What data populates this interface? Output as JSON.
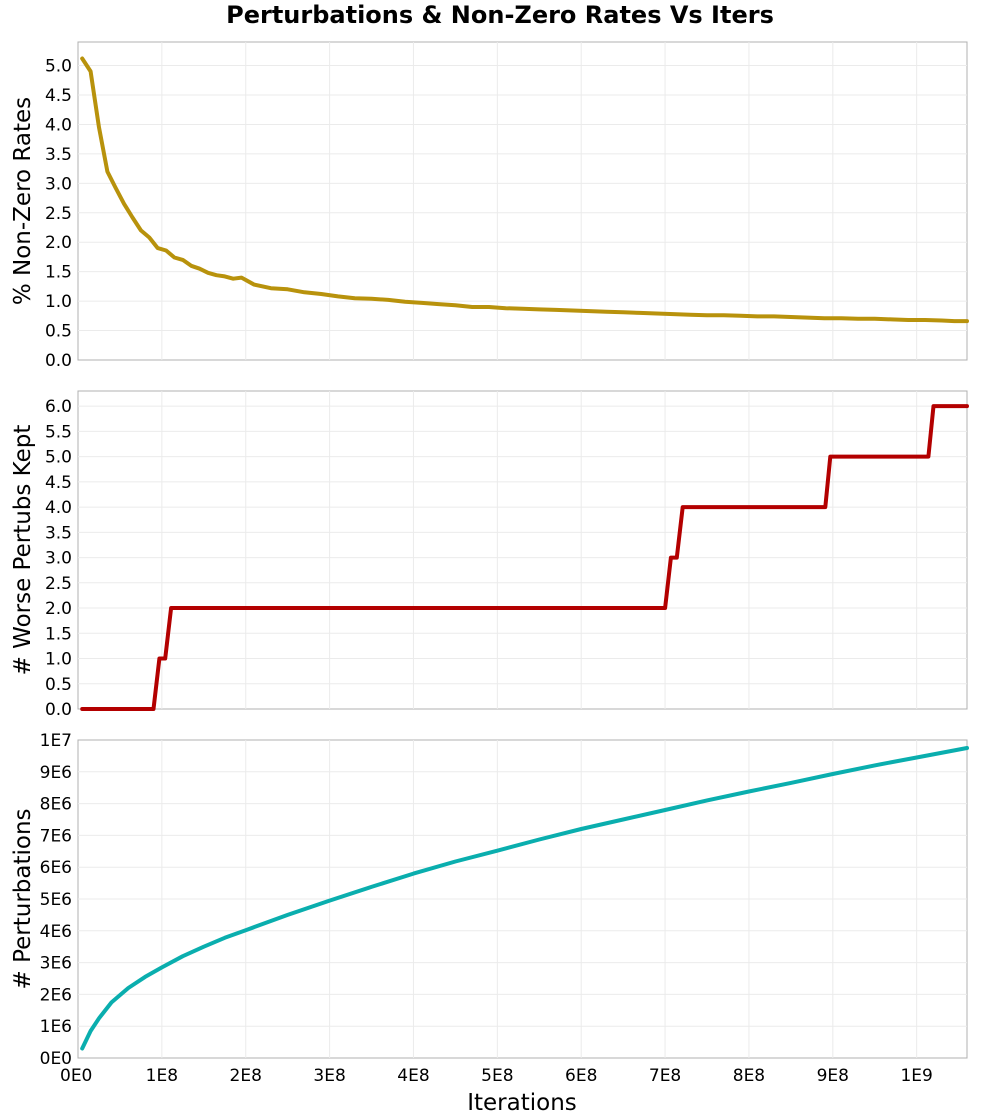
{
  "chart_data": {
    "title": "Perturbations & Non-Zero Rates Vs Iters",
    "xlabel": "Iterations",
    "x_ticks": [
      {
        "value": 0,
        "label": "0E0"
      },
      {
        "value": 100000000,
        "label": "1E8"
      },
      {
        "value": 200000000,
        "label": "2E8"
      },
      {
        "value": 300000000,
        "label": "3E8"
      },
      {
        "value": 400000000,
        "label": "4E8"
      },
      {
        "value": 500000000,
        "label": "5E8"
      },
      {
        "value": 600000000,
        "label": "6E8"
      },
      {
        "value": 700000000,
        "label": "7E8"
      },
      {
        "value": 800000000,
        "label": "8E8"
      },
      {
        "value": 900000000,
        "label": "9E8"
      },
      {
        "value": 1000000000,
        "label": "1E9"
      }
    ],
    "xlim": [
      0,
      1060000000
    ],
    "grid": true,
    "panels": [
      {
        "type": "line",
        "ylabel": "% Non-Zero Rates",
        "ylim": [
          0,
          5.4
        ],
        "y_ticks": [
          {
            "value": 0,
            "label": "0.0"
          },
          {
            "value": 0.5,
            "label": "0.5"
          },
          {
            "value": 1,
            "label": "1.0"
          },
          {
            "value": 1.5,
            "label": "1.5"
          },
          {
            "value": 2,
            "label": "2.0"
          },
          {
            "value": 2.5,
            "label": "2.5"
          },
          {
            "value": 3,
            "label": "3.0"
          },
          {
            "value": 3.5,
            "label": "3.5"
          },
          {
            "value": 4,
            "label": "4.0"
          },
          {
            "value": 4.5,
            "label": "4.5"
          },
          {
            "value": 5,
            "label": "5.0"
          }
        ],
        "color": "#b8920c",
        "x": [
          5000000,
          15000000,
          25000000,
          35000000,
          45000000,
          55000000,
          65000000,
          75000000,
          85000000,
          95000000,
          105000000,
          115000000,
          125000000,
          135000000,
          145000000,
          155000000,
          165000000,
          175000000,
          185000000,
          195000000,
          210000000,
          230000000,
          250000000,
          270000000,
          290000000,
          310000000,
          330000000,
          350000000,
          370000000,
          390000000,
          410000000,
          430000000,
          450000000,
          470000000,
          490000000,
          510000000,
          530000000,
          550000000,
          570000000,
          590000000,
          610000000,
          630000000,
          650000000,
          670000000,
          690000000,
          710000000,
          730000000,
          750000000,
          770000000,
          790000000,
          810000000,
          830000000,
          850000000,
          870000000,
          890000000,
          910000000,
          930000000,
          950000000,
          970000000,
          990000000,
          1010000000,
          1030000000,
          1045000000,
          1060000000
        ],
        "y": [
          5.12,
          4.9,
          3.95,
          3.2,
          2.92,
          2.65,
          2.42,
          2.2,
          2.08,
          1.9,
          1.86,
          1.74,
          1.7,
          1.6,
          1.55,
          1.48,
          1.44,
          1.42,
          1.38,
          1.4,
          1.28,
          1.22,
          1.2,
          1.15,
          1.12,
          1.08,
          1.05,
          1.04,
          1.02,
          0.99,
          0.97,
          0.95,
          0.93,
          0.9,
          0.9,
          0.88,
          0.87,
          0.86,
          0.85,
          0.84,
          0.83,
          0.82,
          0.81,
          0.8,
          0.79,
          0.78,
          0.77,
          0.76,
          0.76,
          0.75,
          0.74,
          0.74,
          0.73,
          0.72,
          0.71,
          0.71,
          0.7,
          0.7,
          0.69,
          0.68,
          0.68,
          0.67,
          0.66,
          0.66
        ]
      },
      {
        "type": "line",
        "ylabel": "# Worse Pertubs Kept",
        "ylim": [
          0,
          6.3
        ],
        "y_ticks": [
          {
            "value": 0,
            "label": "0.0"
          },
          {
            "value": 0.5,
            "label": "0.5"
          },
          {
            "value": 1,
            "label": "1.0"
          },
          {
            "value": 1.5,
            "label": "1.5"
          },
          {
            "value": 2,
            "label": "2.0"
          },
          {
            "value": 2.5,
            "label": "2.5"
          },
          {
            "value": 3,
            "label": "3.0"
          },
          {
            "value": 3.5,
            "label": "3.5"
          },
          {
            "value": 4,
            "label": "4.0"
          },
          {
            "value": 4.5,
            "label": "4.5"
          },
          {
            "value": 5,
            "label": "5.0"
          },
          {
            "value": 5.5,
            "label": "5.5"
          },
          {
            "value": 6,
            "label": "6.0"
          }
        ],
        "color": "#b30000",
        "x": [
          5000000,
          90000000,
          97000000,
          104000000,
          111000000,
          118000000,
          700000000,
          707000000,
          714000000,
          721000000,
          891000000,
          897000000,
          1014000000,
          1020000000,
          1060000000
        ],
        "y": [
          0,
          0,
          1,
          1,
          2,
          2,
          2,
          3,
          3,
          4,
          4,
          5,
          5,
          6,
          6
        ]
      },
      {
        "type": "line",
        "ylabel": "# Perturbations",
        "ylim": [
          0,
          10000000
        ],
        "y_ticks": [
          {
            "value": 0,
            "label": "0E0"
          },
          {
            "value": 1000000,
            "label": "1E6"
          },
          {
            "value": 2000000,
            "label": "2E6"
          },
          {
            "value": 3000000,
            "label": "3E6"
          },
          {
            "value": 4000000,
            "label": "4E6"
          },
          {
            "value": 5000000,
            "label": "5E6"
          },
          {
            "value": 6000000,
            "label": "6E6"
          },
          {
            "value": 7000000,
            "label": "7E6"
          },
          {
            "value": 8000000,
            "label": "8E6"
          },
          {
            "value": 9000000,
            "label": "9E6"
          },
          {
            "value": 10000000,
            "label": "1E7"
          }
        ],
        "color": "#0aaeae",
        "x": [
          5000000,
          15000000,
          25000000,
          40000000,
          60000000,
          80000000,
          100000000,
          125000000,
          150000000,
          175000000,
          200000000,
          250000000,
          300000000,
          350000000,
          400000000,
          450000000,
          500000000,
          550000000,
          600000000,
          650000000,
          700000000,
          750000000,
          800000000,
          850000000,
          900000000,
          950000000,
          1000000000,
          1060000000
        ],
        "y": [
          300000,
          850000,
          1250000,
          1750000,
          2200000,
          2550000,
          2850000,
          3200000,
          3500000,
          3780000,
          4020000,
          4500000,
          4950000,
          5380000,
          5800000,
          6180000,
          6520000,
          6870000,
          7200000,
          7500000,
          7800000,
          8100000,
          8380000,
          8650000,
          8930000,
          9200000,
          9450000,
          9750000
        ]
      }
    ]
  }
}
